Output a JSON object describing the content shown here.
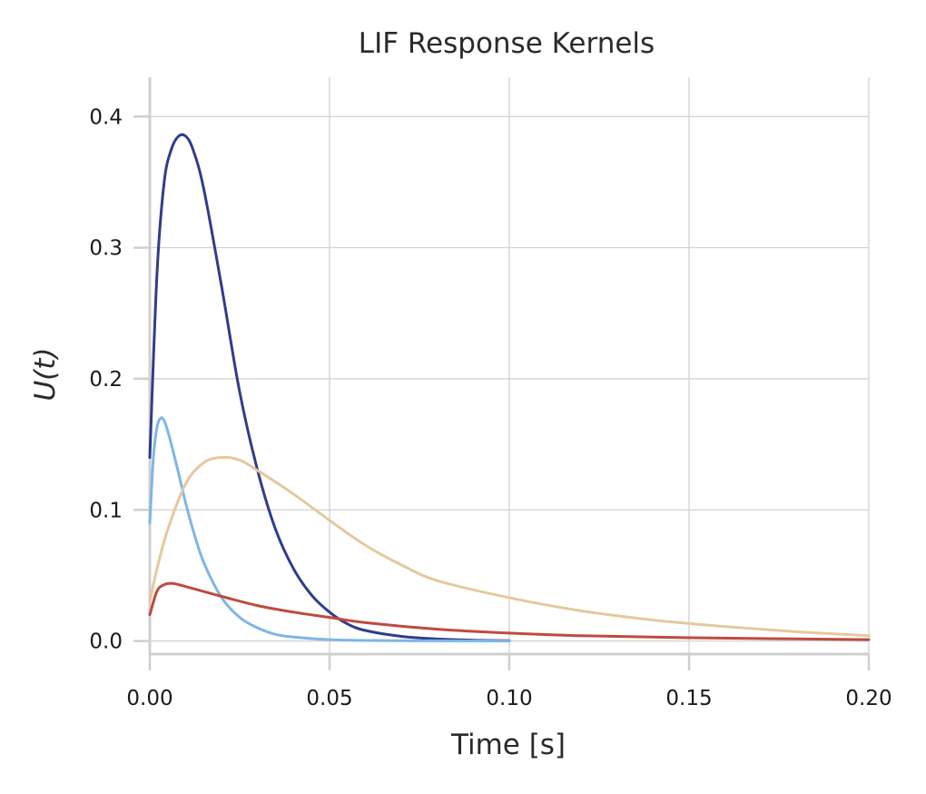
{
  "chart_data": {
    "type": "line",
    "title": "LIF Response Kernels",
    "xlabel": "Time [s]",
    "ylabel": "U(t)",
    "xlim": [
      0.0,
      0.2
    ],
    "ylim": [
      -0.01,
      0.43
    ],
    "xticks": [
      0.0,
      0.05,
      0.1,
      0.15,
      0.2
    ],
    "xtick_labels": [
      "0.00",
      "0.05",
      "0.10",
      "0.15",
      "0.20"
    ],
    "yticks": [
      0.0,
      0.1,
      0.2,
      0.3,
      0.4
    ],
    "ytick_labels": [
      "0.0",
      "0.1",
      "0.2",
      "0.3",
      "0.4"
    ],
    "grid": true,
    "series": [
      {
        "name": "kernel-dark-blue",
        "color": "#2f3d8a",
        "x": [
          0.0,
          0.002,
          0.004,
          0.006,
          0.008,
          0.01,
          0.012,
          0.015,
          0.02,
          0.025,
          0.03,
          0.035,
          0.04,
          0.045,
          0.05,
          0.055,
          0.06,
          0.07,
          0.08,
          0.09,
          0.1
        ],
        "y": [
          0.14,
          0.28,
          0.35,
          0.375,
          0.385,
          0.385,
          0.375,
          0.345,
          0.27,
          0.19,
          0.13,
          0.085,
          0.055,
          0.035,
          0.022,
          0.013,
          0.008,
          0.0035,
          0.0015,
          0.0006,
          0.0002
        ]
      },
      {
        "name": "kernel-light-blue",
        "color": "#7eb6e6",
        "x": [
          0.0,
          0.001,
          0.002,
          0.003,
          0.004,
          0.005,
          0.006,
          0.008,
          0.01,
          0.012,
          0.015,
          0.02,
          0.025,
          0.03,
          0.035,
          0.04,
          0.05,
          0.06,
          0.07,
          0.08,
          0.1
        ],
        "y": [
          0.09,
          0.14,
          0.163,
          0.17,
          0.168,
          0.16,
          0.15,
          0.128,
          0.105,
          0.085,
          0.06,
          0.033,
          0.018,
          0.01,
          0.005,
          0.003,
          0.001,
          0.0004,
          0.0002,
          0.0001,
          0.0
        ]
      },
      {
        "name": "kernel-tan",
        "color": "#e3c99f",
        "x": [
          0.0,
          0.002,
          0.005,
          0.01,
          0.015,
          0.02,
          0.025,
          0.03,
          0.04,
          0.05,
          0.06,
          0.07,
          0.08,
          0.1,
          0.12,
          0.14,
          0.16,
          0.18,
          0.2
        ],
        "y": [
          0.03,
          0.055,
          0.085,
          0.12,
          0.136,
          0.14,
          0.138,
          0.13,
          0.112,
          0.092,
          0.073,
          0.058,
          0.046,
          0.033,
          0.023,
          0.016,
          0.011,
          0.007,
          0.004
        ]
      },
      {
        "name": "kernel-red",
        "color": "#bf4a40",
        "x": [
          0.0,
          0.002,
          0.004,
          0.006,
          0.008,
          0.012,
          0.02,
          0.03,
          0.04,
          0.05,
          0.06,
          0.08,
          0.1,
          0.12,
          0.15,
          0.2
        ],
        "y": [
          0.02,
          0.038,
          0.043,
          0.044,
          0.043,
          0.04,
          0.034,
          0.027,
          0.022,
          0.018,
          0.014,
          0.009,
          0.006,
          0.004,
          0.0025,
          0.001
        ]
      }
    ]
  }
}
